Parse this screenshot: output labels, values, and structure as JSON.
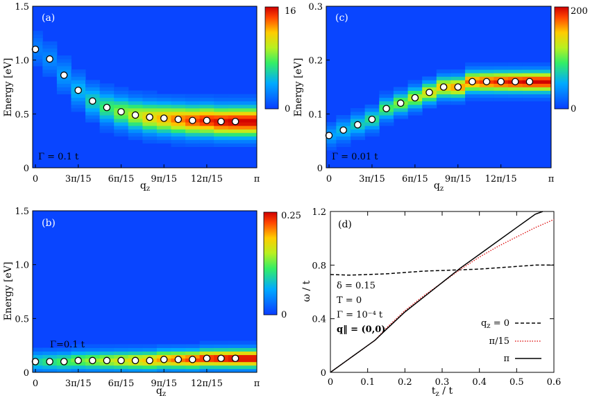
{
  "chart_data": [
    {
      "id": "a",
      "type": "heatmap",
      "panel_label": "(a)",
      "xlabel": "q",
      "xlabel_sub": "z",
      "ylabel": "Energy [eV]",
      "ylim": [
        0,
        1.5
      ],
      "yticks": [
        "0",
        "0.5",
        "1.0",
        "1.5"
      ],
      "xticks": [
        "0",
        "3π/15",
        "6π/15",
        "9π/15",
        "12π/15",
        "π"
      ],
      "colorbar": {
        "min_label": "0",
        "max_label": "16"
      },
      "annotation": "Γ = 0.1 t",
      "x": [
        0,
        1,
        2,
        3,
        4,
        5,
        6,
        7,
        8,
        9,
        10,
        11,
        12,
        13,
        14
      ],
      "peak_energy": [
        1.1,
        1.01,
        0.86,
        0.72,
        0.62,
        0.56,
        0.52,
        0.49,
        0.47,
        0.46,
        0.45,
        0.44,
        0.44,
        0.43,
        0.43
      ],
      "width": 0.16,
      "peak_strength": [
        0.12,
        0.14,
        0.18,
        0.25,
        0.33,
        0.42,
        0.52,
        0.61,
        0.7,
        0.77,
        0.84,
        0.9,
        0.95,
        0.98,
        1.0
      ]
    },
    {
      "id": "c",
      "type": "heatmap",
      "panel_label": "(c)",
      "xlabel": "q",
      "xlabel_sub": "z",
      "ylabel": "Energy [eV]",
      "ylim": [
        0,
        0.3
      ],
      "yticks": [
        "0",
        "0.1",
        "0.2",
        "0.3"
      ],
      "xticks": [
        "0",
        "3π/15",
        "6π/15",
        "9π/15",
        "12π/15",
        "π"
      ],
      "colorbar": {
        "min_label": "0",
        "max_label": "200"
      },
      "annotation": "Γ = 0.01 t",
      "x": [
        0,
        1,
        2,
        3,
        4,
        5,
        6,
        7,
        8,
        9,
        10,
        11,
        12,
        13,
        14
      ],
      "peak_energy": [
        0.06,
        0.07,
        0.08,
        0.09,
        0.11,
        0.12,
        0.13,
        0.14,
        0.15,
        0.15,
        0.16,
        0.16,
        0.16,
        0.16,
        0.16
      ],
      "width": 0.022,
      "peak_strength": [
        0.2,
        0.26,
        0.32,
        0.38,
        0.45,
        0.52,
        0.59,
        0.66,
        0.73,
        0.8,
        0.86,
        0.91,
        0.95,
        0.98,
        1.0
      ]
    },
    {
      "id": "b",
      "type": "heatmap",
      "panel_label": "(b)",
      "xlabel": "q",
      "xlabel_sub": "z",
      "ylabel": "Energy [eV]",
      "ylim": [
        0,
        1.5
      ],
      "yticks": [
        "0",
        "0.5",
        "1.0",
        "1.5"
      ],
      "xticks": [
        "0",
        "3π/15",
        "6π/15",
        "9π/15",
        "12π/15",
        "π"
      ],
      "colorbar": {
        "min_label": "0",
        "max_label": "0.25"
      },
      "annotation": "Γ=0.1 t",
      "x": [
        0,
        1,
        2,
        3,
        4,
        5,
        6,
        7,
        8,
        9,
        10,
        11,
        12,
        13,
        14
      ],
      "peak_energy": [
        0.1,
        0.1,
        0.1,
        0.11,
        0.11,
        0.11,
        0.11,
        0.11,
        0.11,
        0.12,
        0.12,
        0.12,
        0.13,
        0.13,
        0.13
      ],
      "width": 0.1,
      "peak_strength": [
        0.35,
        0.4,
        0.45,
        0.5,
        0.55,
        0.6,
        0.65,
        0.7,
        0.75,
        0.8,
        0.85,
        0.9,
        0.94,
        0.97,
        1.0
      ]
    },
    {
      "id": "d",
      "type": "line",
      "panel_label": "(d)",
      "xlabel": "t",
      "xlabel_sub": "z",
      "xlabel_tail": " / t",
      "ylabel": "ω / t",
      "xlim": [
        0,
        0.6
      ],
      "ylim": [
        0,
        1.2
      ],
      "xticks": [
        "0",
        "0.1",
        "0.2",
        "0.3",
        "0.4",
        "0.5",
        "0.6"
      ],
      "yticks": [
        "0",
        "0.4",
        "0.8",
        "1.2"
      ],
      "params": [
        "δ = 0.15",
        "T = 0",
        "Γ = 10⁻⁴ t",
        "q‖ = (0,0)"
      ],
      "series": [
        {
          "name": "q_z = 0",
          "legend": "q",
          "legend_sub": "z",
          "legend_tail": " = 0",
          "style": "dashed",
          "color": "#000000",
          "x": [
            0,
            0.05,
            0.1,
            0.15,
            0.2,
            0.25,
            0.3,
            0.35,
            0.4,
            0.45,
            0.5,
            0.55,
            0.6
          ],
          "y": [
            0.73,
            0.725,
            0.73,
            0.735,
            0.745,
            0.755,
            0.76,
            0.765,
            0.77,
            0.78,
            0.79,
            0.8,
            0.8
          ]
        },
        {
          "name": "π/15",
          "legend": "π/15",
          "style": "dotted",
          "color": "#e02020",
          "x": [
            0,
            0.05,
            0.1,
            0.12,
            0.15,
            0.2,
            0.25,
            0.3,
            0.35,
            0.4,
            0.45,
            0.5,
            0.55,
            0.6
          ],
          "y": [
            0,
            0.1,
            0.2,
            0.24,
            0.33,
            0.46,
            0.57,
            0.67,
            0.77,
            0.86,
            0.94,
            1.01,
            1.08,
            1.14
          ]
        },
        {
          "name": "π",
          "legend": "π",
          "style": "solid",
          "color": "#000000",
          "x": [
            0,
            0.05,
            0.1,
            0.12,
            0.15,
            0.2,
            0.25,
            0.3,
            0.35,
            0.4,
            0.45,
            0.5,
            0.55,
            0.57
          ],
          "y": [
            0,
            0.1,
            0.2,
            0.24,
            0.32,
            0.45,
            0.56,
            0.67,
            0.78,
            0.88,
            0.98,
            1.08,
            1.18,
            1.2
          ]
        }
      ]
    }
  ]
}
